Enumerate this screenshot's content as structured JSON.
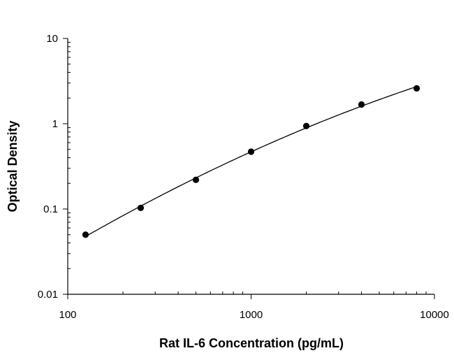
{
  "chart_data": {
    "type": "scatter",
    "title": "",
    "xlabel": "Rat IL-6 Concentration (pg/mL)",
    "ylabel": "Optical Density",
    "x_scale": "log",
    "y_scale": "log",
    "xlim": [
      100,
      10000
    ],
    "ylim": [
      0.01,
      10
    ],
    "x_ticks": [
      "100",
      "1000",
      "10000"
    ],
    "y_ticks": [
      "0.01",
      "0.1",
      "1",
      "10"
    ],
    "grid": false,
    "legend": "none",
    "series": [
      {
        "x": [
          125,
          250,
          500,
          1000,
          2000,
          4000,
          8000
        ],
        "y": [
          0.05,
          0.103,
          0.22,
          0.47,
          0.94,
          1.68,
          2.6
        ],
        "fit_curve": true
      }
    ]
  }
}
